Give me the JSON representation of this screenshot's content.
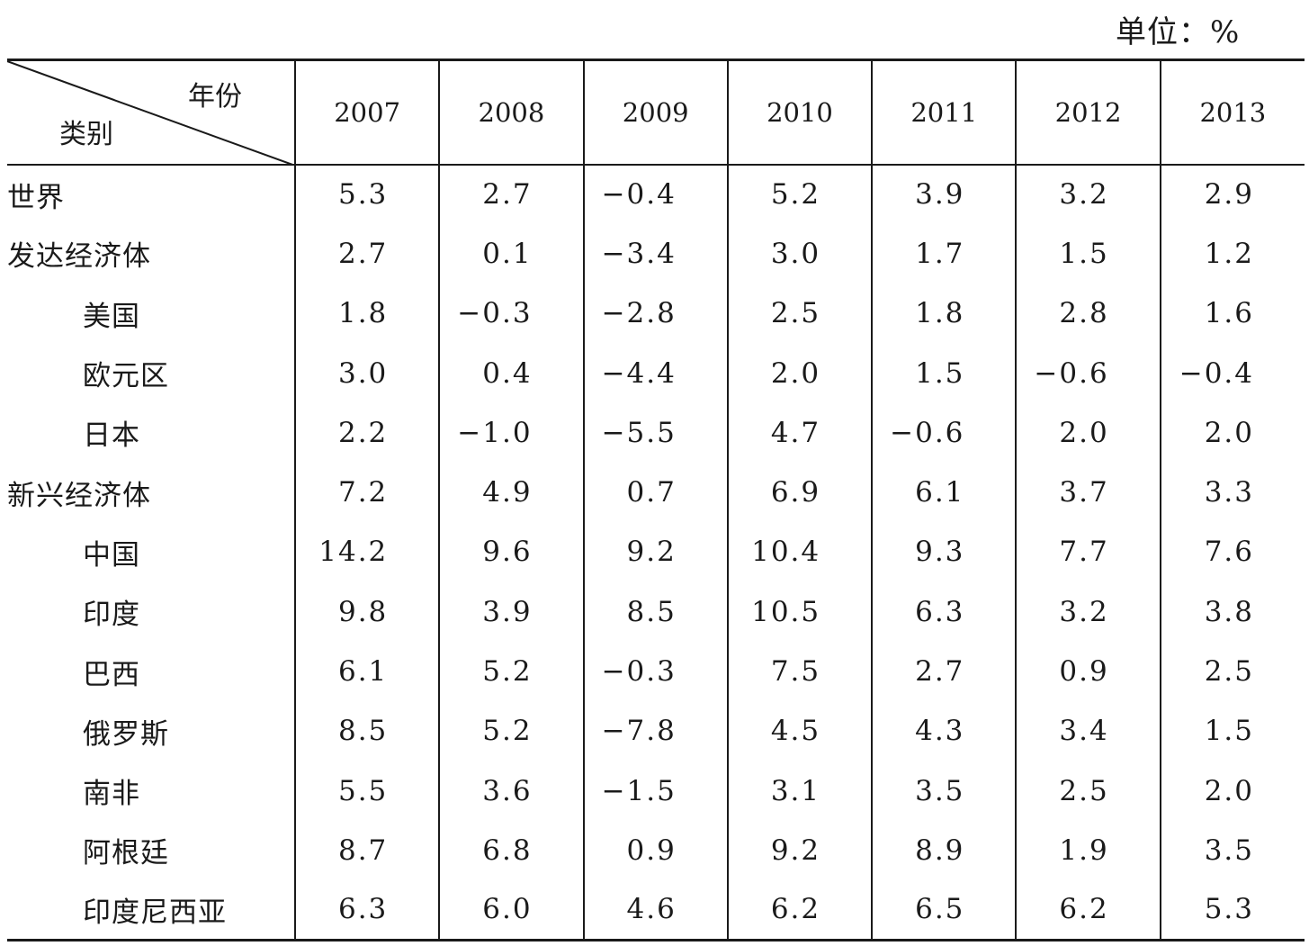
{
  "unit_label": "单位：%",
  "header": {
    "year_label": "年份",
    "category_label": "类别",
    "years": [
      "2007",
      "2008",
      "2009",
      "2010",
      "2011",
      "2012",
      "2013"
    ]
  },
  "rows": [
    {
      "label": "世界",
      "values": [
        "5.3",
        "2.7",
        "−0.4",
        "5.2",
        "3.9",
        "3.2",
        "2.9"
      ]
    },
    {
      "label": "发达经济体",
      "values": [
        "2.7",
        "0.1",
        "−3.4",
        "3.0",
        "1.7",
        "1.5",
        "1.2"
      ]
    },
    {
      "label": "美国",
      "values": [
        "1.8",
        "−0.3",
        "−2.8",
        "2.5",
        "1.8",
        "2.8",
        "1.6"
      ]
    },
    {
      "label": "欧元区",
      "values": [
        "3.0",
        "0.4",
        "−4.4",
        "2.0",
        "1.5",
        "−0.6",
        "−0.4"
      ]
    },
    {
      "label": "日本",
      "values": [
        "2.2",
        "−1.0",
        "−5.5",
        "4.7",
        "−0.6",
        "2.0",
        "2.0"
      ]
    },
    {
      "label": "新兴经济体",
      "values": [
        "7.2",
        "4.9",
        "0.7",
        "6.9",
        "6.1",
        "3.7",
        "3.3"
      ]
    },
    {
      "label": "中国",
      "values": [
        "14.2",
        "9.6",
        "9.2",
        "10.4",
        "9.3",
        "7.7",
        "7.6"
      ]
    },
    {
      "label": "印度",
      "values": [
        "9.8",
        "3.9",
        "8.5",
        "10.5",
        "6.3",
        "3.2",
        "3.8"
      ]
    },
    {
      "label": "巴西",
      "values": [
        "6.1",
        "5.2",
        "−0.3",
        "7.5",
        "2.7",
        "0.9",
        "2.5"
      ]
    },
    {
      "label": "俄罗斯",
      "values": [
        "8.5",
        "5.2",
        "−7.8",
        "4.5",
        "4.3",
        "3.4",
        "1.5"
      ]
    },
    {
      "label": "南非",
      "values": [
        "5.5",
        "3.6",
        "−1.5",
        "3.1",
        "3.5",
        "2.5",
        "2.0"
      ]
    },
    {
      "label": "阿根廷",
      "values": [
        "8.7",
        "6.8",
        "0.9",
        "9.2",
        "8.9",
        "1.9",
        "3.5"
      ]
    },
    {
      "label": "印度尼西亚",
      "values": [
        "6.3",
        "6.0",
        "4.6",
        "6.2",
        "6.5",
        "6.2",
        "5.3"
      ]
    }
  ]
}
